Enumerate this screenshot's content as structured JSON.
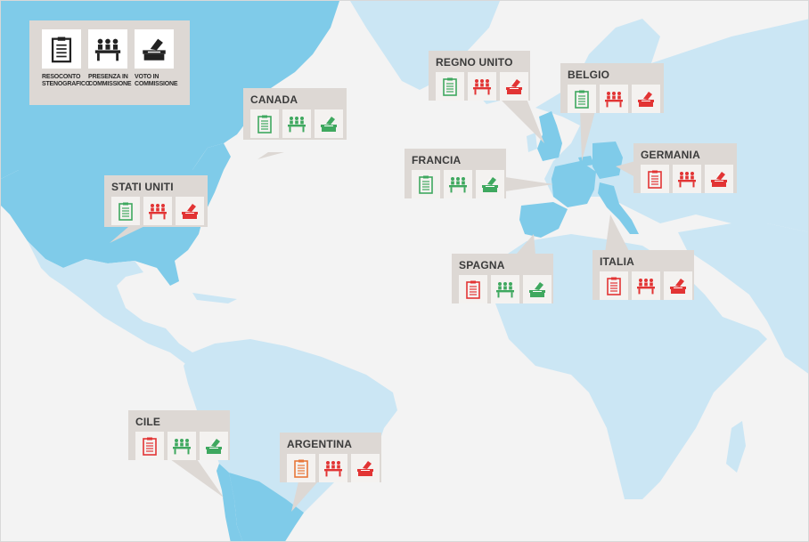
{
  "colors": {
    "green": "#3fa85f",
    "red": "#e23434",
    "orange": "#e8773a",
    "dark": "#222222",
    "ocean": "#f3f3f3",
    "selected_land": "#7fcbe9",
    "other_land": "#cbe6f4",
    "panel": "#ddd8d4"
  },
  "icon_names": [
    "clipboard-icon",
    "committee-icon",
    "ballot-box-icon"
  ],
  "legend": {
    "items": [
      {
        "line1": "RESOCONTO",
        "line2": "STENOGRAFICO"
      },
      {
        "line1": "PRESENZA IN",
        "line2": "COMMISSIONE"
      },
      {
        "line1": "VOTO IN",
        "line2": "COMMISSIONE"
      }
    ]
  },
  "countries": [
    {
      "name": "CANADA",
      "status": [
        "green",
        "green",
        "green"
      ]
    },
    {
      "name": "STATI UNITI",
      "status": [
        "green",
        "red",
        "red"
      ]
    },
    {
      "name": "REGNO UNITO",
      "status": [
        "green",
        "red",
        "red"
      ]
    },
    {
      "name": "BELGIO",
      "status": [
        "green",
        "red",
        "red"
      ]
    },
    {
      "name": "FRANCIA",
      "status": [
        "green",
        "green",
        "green"
      ]
    },
    {
      "name": "GERMANIA",
      "status": [
        "red",
        "red",
        "red"
      ]
    },
    {
      "name": "SPAGNA",
      "status": [
        "red",
        "green",
        "green"
      ]
    },
    {
      "name": "ITALIA",
      "status": [
        "red",
        "red",
        "red"
      ]
    },
    {
      "name": "CILE",
      "status": [
        "red",
        "green",
        "green"
      ]
    },
    {
      "name": "ARGENTINA",
      "status": [
        "orange",
        "red",
        "red"
      ]
    }
  ]
}
